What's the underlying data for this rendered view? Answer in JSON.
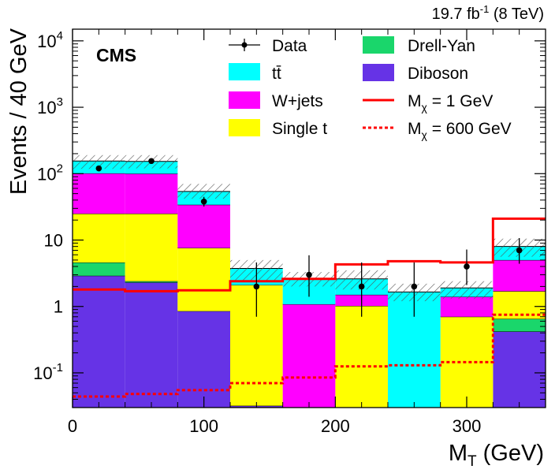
{
  "chart_data": {
    "type": "bar",
    "stacked": true,
    "title": "",
    "luminosity_label": {
      "base": "19.7 fb",
      "sup": "-1",
      "rest": " (8 TeV)"
    },
    "experiment_label": "CMS",
    "xlabel": {
      "main": "M",
      "sub": "T",
      "rest": " (GeV)"
    },
    "ylabel": "Events / 40 GeV",
    "xlim": [
      0,
      360
    ],
    "ylim": [
      0.03,
      15000
    ],
    "yscale": "log",
    "bin_edges": [
      0,
      40,
      80,
      120,
      160,
      200,
      240,
      280,
      320,
      360
    ],
    "x_ticks": [
      {
        "value": 0,
        "label": "0"
      },
      {
        "value": 100,
        "label": "100"
      },
      {
        "value": 200,
        "label": "200"
      },
      {
        "value": 300,
        "label": "300"
      }
    ],
    "y_ticks": [
      {
        "value": 0.1,
        "base": "10",
        "sup": "-1"
      },
      {
        "value": 1,
        "base": "1",
        "sup": ""
      },
      {
        "value": 10,
        "base": "10",
        "sup": ""
      },
      {
        "value": 100,
        "base": "10",
        "sup": "2"
      },
      {
        "value": 1000,
        "base": "10",
        "sup": "3"
      },
      {
        "value": 10000,
        "base": "10",
        "sup": "4"
      }
    ],
    "series": [
      {
        "name": "Diboson",
        "color": "#6633e6",
        "values": [
          2.9,
          2.3,
          0.85,
          0.032,
          0,
          0,
          0,
          0,
          0.42
        ]
      },
      {
        "name": "Drell-Yan",
        "color": "#1ad66b",
        "values": [
          1.7,
          0.1,
          0,
          0,
          0,
          0,
          0,
          0,
          0.23
        ]
      },
      {
        "name": "Single t",
        "color": "#ffff00",
        "values": [
          20.4,
          22.6,
          6.75,
          2.07,
          0,
          1.02,
          0,
          0.7,
          1.05
        ]
      },
      {
        "name": "W+jets",
        "color": "#ff00ff",
        "values": [
          76,
          75,
          26.4,
          0,
          1.08,
          0.48,
          0,
          0.7,
          3.3
        ]
      },
      {
        "name": "tt̄",
        "color": "#00ffff",
        "values": [
          54,
          53,
          20,
          1.63,
          1.52,
          1.1,
          1.65,
          0.5,
          3.0
        ]
      }
    ],
    "total_uncertainty": {
      "upper": [
        190,
        190,
        70,
        5.0,
        3.3,
        3.5,
        2.2,
        2.4,
        10.5
      ],
      "lower": [
        118,
        120,
        42,
        2.4,
        2.0,
        1.8,
        1.2,
        1.3,
        5.6
      ]
    },
    "data": {
      "name": "Data",
      "x": [
        20,
        60,
        100,
        140,
        180,
        220,
        260,
        300,
        340
      ],
      "y": [
        120,
        155,
        38,
        2,
        3,
        2,
        2,
        4,
        7
      ],
      "err_low": [
        11,
        12,
        6,
        1.3,
        1.6,
        1.3,
        1.3,
        1.9,
        2.6
      ],
      "err_high": [
        11.5,
        12.5,
        6.7,
        2.6,
        2.9,
        2.6,
        2.6,
        3.2,
        3.7
      ]
    },
    "signals": [
      {
        "name": "Mχ = 1 GeV",
        "label_main": "M",
        "label_sub": "χ",
        "label_rest": " = 1 GeV",
        "color": "#ff0000",
        "style": "solid",
        "values": [
          1.8,
          1.7,
          1.75,
          2.4,
          2.6,
          4.3,
          4.8,
          4.6,
          21
        ]
      },
      {
        "name": "Mχ = 600 GeV",
        "label_main": "M",
        "label_sub": "χ",
        "label_rest": " = 600 GeV",
        "color": "#ff0000",
        "style": "dashed",
        "values": [
          0.044,
          0.048,
          0.055,
          0.07,
          0.085,
          0.125,
          0.13,
          0.145,
          0.75
        ]
      }
    ],
    "legend": {
      "position": "top",
      "columns": [
        [
          {
            "key": "data",
            "label": "Data"
          },
          {
            "key": "tt",
            "label": "tt̄"
          },
          {
            "key": "wjets",
            "label": "W+jets"
          },
          {
            "key": "singlet",
            "label": "Single t"
          }
        ],
        [
          {
            "key": "dy",
            "label": "Drell-Yan"
          },
          {
            "key": "diboson",
            "label": "Diboson"
          },
          {
            "key": "sig1",
            "label": "Mχ = 1 GeV"
          },
          {
            "key": "sig600",
            "label": "Mχ = 600 GeV"
          }
        ]
      ]
    }
  }
}
